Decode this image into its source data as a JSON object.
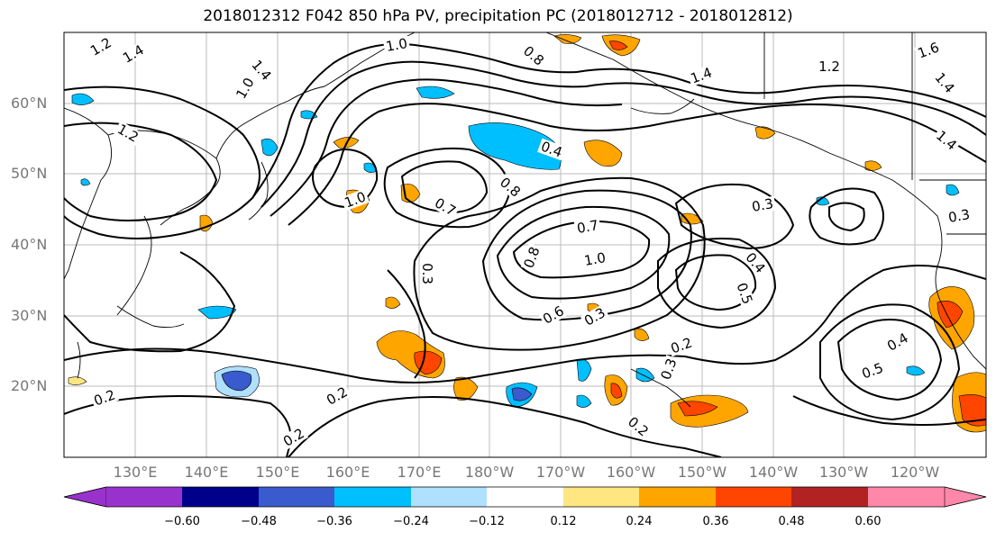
{
  "title": "2018012312 F042 850 hPa PV, precipitation PC (2018012712 - 2018012812)",
  "lat_labels": [
    "60°N",
    "50°N",
    "40°N",
    "30°N",
    "20°N"
  ],
  "lon_labels": [
    "130°E",
    "140°E",
    "150°E",
    "160°E",
    "170°E",
    "180°W",
    "170°W",
    "160°W",
    "150°W",
    "140°W",
    "130°W",
    "120°W"
  ],
  "colorbar": {
    "tick_labels": [
      "−0.60",
      "−0.48",
      "−0.36",
      "−0.24",
      "−0.12",
      "0.12",
      "0.24",
      "0.36",
      "0.48",
      "0.60"
    ],
    "colors": [
      "#9932CC",
      "#00008B",
      "#3A5BCD",
      "#00BFFF",
      "#B0E0FF",
      "#FFFFFF",
      "#FFE680",
      "#FFA500",
      "#FF4500",
      "#B22222",
      "#FF88AA"
    ]
  },
  "contour_labels": [
    {
      "text": "1.2"
    },
    {
      "text": "1.4"
    },
    {
      "text": "1.0"
    },
    {
      "text": "1.4"
    },
    {
      "text": "1.2"
    },
    {
      "text": "1.0"
    },
    {
      "text": "0.8"
    },
    {
      "text": "1.4"
    },
    {
      "text": "1.2"
    },
    {
      "text": "1.6"
    },
    {
      "text": "1.4"
    },
    {
      "text": "1.4"
    },
    {
      "text": "0.4"
    },
    {
      "text": "0.8"
    },
    {
      "text": "0.7"
    },
    {
      "text": "0.3"
    },
    {
      "text": "0.7"
    },
    {
      "text": "1.0"
    },
    {
      "text": "0.8"
    },
    {
      "text": "0.3"
    },
    {
      "text": "0.4"
    },
    {
      "text": "0.5"
    },
    {
      "text": "0.6"
    },
    {
      "text": "0.3"
    },
    {
      "text": "0.2"
    },
    {
      "text": "0.3"
    },
    {
      "text": "0.5"
    },
    {
      "text": "0.4"
    },
    {
      "text": "0.2"
    },
    {
      "text": "0.2"
    },
    {
      "text": "0.2"
    },
    {
      "text": "0.2"
    },
    {
      "text": "0.3"
    },
    {
      "text": "1.0"
    }
  ]
}
